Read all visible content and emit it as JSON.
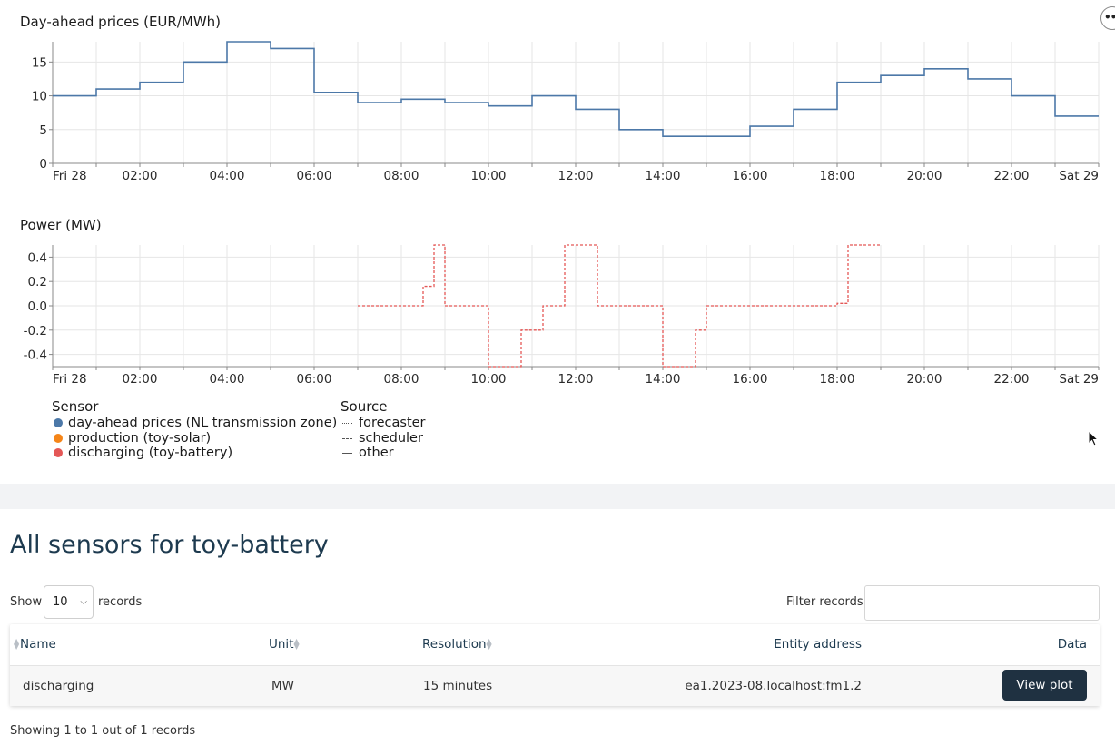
{
  "price_chart": {
    "title": "Day-ahead prices (EUR/MWh)",
    "y_ticks": [
      "0",
      "5",
      "10",
      "15"
    ],
    "x_ticks": [
      "Fri 28",
      "02:00",
      "04:00",
      "06:00",
      "08:00",
      "10:00",
      "12:00",
      "14:00",
      "16:00",
      "18:00",
      "20:00",
      "22:00",
      "Sat 29"
    ]
  },
  "power_chart": {
    "title": "Power (MW)",
    "y_ticks": [
      "0.4",
      "0.2",
      "0.0",
      "-0.2",
      "-0.4"
    ],
    "x_ticks": [
      "Fri 28",
      "02:00",
      "04:00",
      "06:00",
      "08:00",
      "10:00",
      "12:00",
      "14:00",
      "16:00",
      "18:00",
      "20:00",
      "22:00",
      "Sat 29"
    ]
  },
  "chart_data": [
    {
      "type": "line",
      "title": "Day-ahead prices (EUR/MWh)",
      "x_unit": "hour of day (step start)",
      "ylim": [
        0,
        18
      ],
      "series": [
        {
          "name": "day-ahead prices (NL transmission zone)",
          "color": "#4c78a8",
          "style": "solid-step",
          "x": [
            0,
            1,
            2,
            3,
            4,
            5,
            6,
            7,
            8,
            9,
            10,
            11,
            12,
            13,
            14,
            15,
            16,
            17,
            18,
            19,
            20,
            21,
            22,
            23,
            23.75
          ],
          "y": [
            10,
            11,
            12,
            15,
            18,
            17,
            10.5,
            9,
            9.5,
            9,
            8.5,
            10,
            8,
            5,
            4,
            4,
            5.5,
            8,
            12,
            13,
            14,
            12.5,
            10,
            7,
            7
          ]
        }
      ]
    },
    {
      "type": "line",
      "title": "Power (MW)",
      "x_unit": "hour of day (step start)",
      "ylim": [
        -0.5,
        0.5
      ],
      "series": [
        {
          "name": "discharging (toy-battery)",
          "color": "#e45756",
          "style": "dashed-step",
          "x": [
            7,
            7.25,
            7.5,
            7.75,
            8,
            8.25,
            8.5,
            8.75,
            9,
            9.25,
            9.5,
            9.75,
            10,
            10.25,
            10.5,
            10.75,
            11,
            11.25,
            11.5,
            11.75,
            12,
            12.25,
            12.5,
            12.75,
            13,
            13.25,
            13.5,
            13.75,
            14,
            14.25,
            14.5,
            14.75,
            15,
            15.25,
            15.5,
            15.75,
            16,
            16.25,
            16.5,
            16.75,
            17,
            17.25,
            17.5,
            17.75,
            18,
            18.25,
            18.5,
            18.75
          ],
          "y": [
            0,
            0,
            0,
            0,
            0,
            0,
            0.16,
            0.5,
            0,
            0,
            0,
            0,
            -0.5,
            -0.5,
            -0.5,
            -0.2,
            -0.2,
            0,
            0,
            0.5,
            0.5,
            0.5,
            0,
            0,
            0,
            0,
            0,
            0,
            -0.5,
            -0.5,
            -0.5,
            -0.2,
            0,
            0,
            0,
            0,
            0,
            0,
            0,
            0,
            0,
            0,
            0,
            0,
            0.02,
            0.5,
            0.5,
            0.5
          ]
        }
      ]
    }
  ],
  "legend": {
    "sensor_title": "Sensor",
    "sensors": [
      {
        "label": "day-ahead prices (NL transmission zone)",
        "color": "#4c78a8"
      },
      {
        "label": "production (toy-solar)",
        "color": "#f58518"
      },
      {
        "label": "discharging (toy-battery)",
        "color": "#e45756"
      }
    ],
    "source_title": "Source",
    "sources": [
      {
        "label": "forecaster",
        "style": "dotted"
      },
      {
        "label": "scheduler",
        "style": "dashed"
      },
      {
        "label": "other",
        "style": "solid"
      }
    ]
  },
  "menu_icon": "ellipsis-icon",
  "table_section": {
    "title": "All sensors for toy-battery",
    "show_label": "Show",
    "length_value": "10",
    "records_label": "records",
    "filter_label": "Filter records:",
    "filter_value": "",
    "columns": [
      "Name",
      "Unit",
      "Resolution",
      "Entity address",
      "Data"
    ],
    "rows": [
      {
        "name": "discharging",
        "unit": "MW",
        "resolution": "15 minutes",
        "entity_address": "ea1.2023-08.localhost:fm1.2",
        "button": "View plot"
      }
    ],
    "info": "Showing 1 to 1 out of 1 records"
  }
}
